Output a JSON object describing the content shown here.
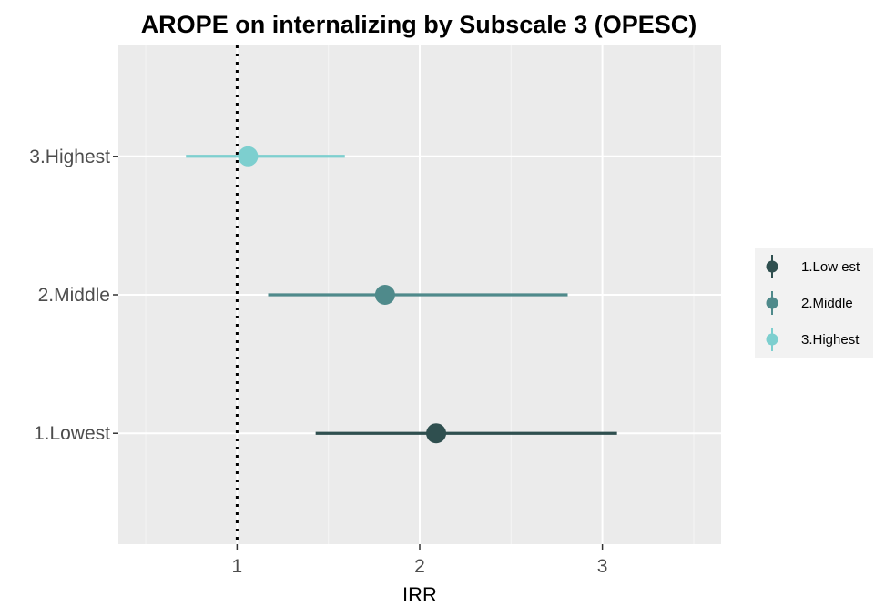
{
  "chart_data": {
    "type": "scatter",
    "title": "AROPE on internalizing by Subscale 3 (OPESC)",
    "xlabel": "IRR",
    "ylabel": "",
    "xlim": [
      0.35,
      3.65
    ],
    "x_ticks": [
      1,
      2,
      3
    ],
    "x_tick_labels": [
      "1",
      "2",
      "3"
    ],
    "x_minor_gridlines": [
      0.5,
      1.5,
      2.5,
      3.5
    ],
    "categories": [
      "1.Lowest",
      "2.Middle",
      "3.Highest"
    ],
    "reference_line": {
      "x": 1,
      "style": "dotted"
    },
    "grid": true,
    "legend_position": "right",
    "series": [
      {
        "name": "1.Low est",
        "category": "1.Lowest",
        "estimate": 2.09,
        "lower": 1.43,
        "upper": 3.08,
        "color": "#2f4f4f"
      },
      {
        "name": "2.Middle",
        "category": "2.Middle",
        "estimate": 1.81,
        "lower": 1.17,
        "upper": 2.81,
        "color": "#4f8a8b"
      },
      {
        "name": "3.Highest",
        "category": "3.Highest",
        "estimate": 1.06,
        "lower": 0.72,
        "upper": 1.59,
        "color": "#7dcfcf"
      }
    ]
  }
}
